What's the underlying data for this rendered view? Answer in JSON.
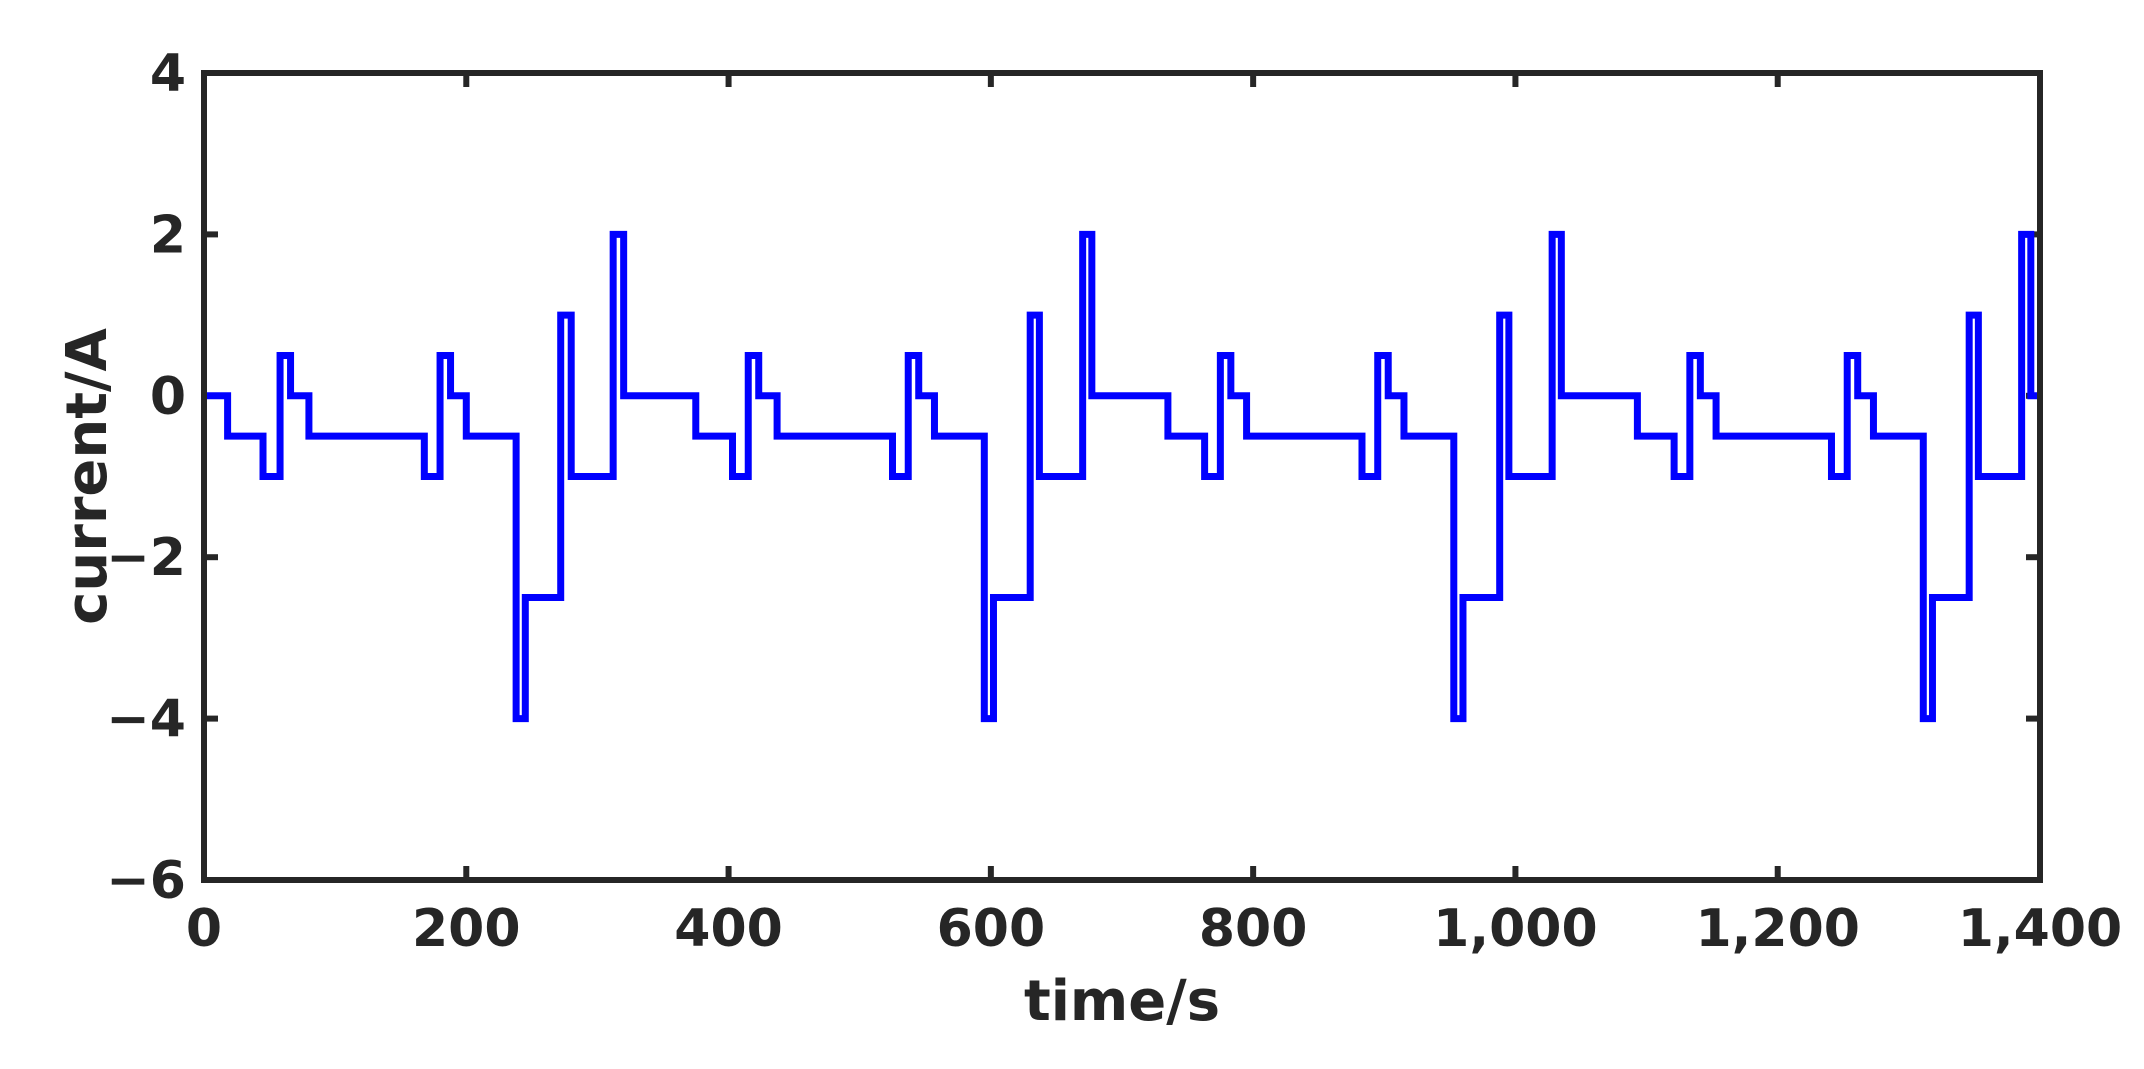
{
  "chart_data": {
    "type": "line",
    "title": "",
    "xlabel": "time/s",
    "ylabel": "current/A",
    "xlim": [
      0,
      1400
    ],
    "ylim": [
      -6,
      4
    ],
    "x_ticks": [
      0,
      200,
      400,
      600,
      800,
      1000,
      1200,
      1400
    ],
    "x_tick_labels": [
      "0",
      "200",
      "400",
      "600",
      "800",
      "1,000",
      "1,200",
      "1,400"
    ],
    "y_ticks": [
      -6,
      -4,
      -2,
      0,
      2,
      4
    ],
    "y_tick_labels": [
      "−6",
      "−4",
      "−2",
      "0",
      "2",
      "4"
    ],
    "grid": false,
    "legend": "none",
    "colors": {
      "line": "#0000ff",
      "axes": "#262626"
    },
    "series": [
      {
        "style": "step",
        "x": [
          0,
          18,
          45,
          58,
          66,
          80,
          168,
          180,
          188,
          200,
          238,
          245,
          272,
          280,
          312,
          320,
          375,
          403,
          415,
          423,
          437,
          525,
          537,
          545,
          557,
          595,
          602,
          630,
          637,
          670,
          677,
          735,
          763,
          775,
          783,
          795,
          883,
          895,
          903,
          915,
          953,
          960,
          988,
          995,
          1028,
          1035,
          1093,
          1121,
          1133,
          1141,
          1153,
          1241,
          1253,
          1261,
          1273,
          1311,
          1318,
          1346,
          1353,
          1386,
          1393,
          1400
        ],
        "values": [
          0,
          -0.5,
          -1,
          0.5,
          0,
          -0.5,
          -1,
          0.5,
          0,
          -0.5,
          -4,
          -2.5,
          1,
          -1,
          2,
          0,
          -0.5,
          -1,
          0.5,
          0,
          -0.5,
          -1,
          0.5,
          0,
          -0.5,
          -4,
          -2.5,
          1,
          -1,
          2,
          0,
          -0.5,
          -1,
          0.5,
          0,
          -0.5,
          -1,
          0.5,
          0,
          -0.5,
          -4,
          -2.5,
          1,
          -1,
          2,
          0,
          -0.5,
          -1,
          0.5,
          0,
          -0.5,
          -1,
          0.5,
          0,
          -0.5,
          -4,
          -2.5,
          1,
          -1,
          2,
          0,
          0
        ]
      }
    ]
  }
}
